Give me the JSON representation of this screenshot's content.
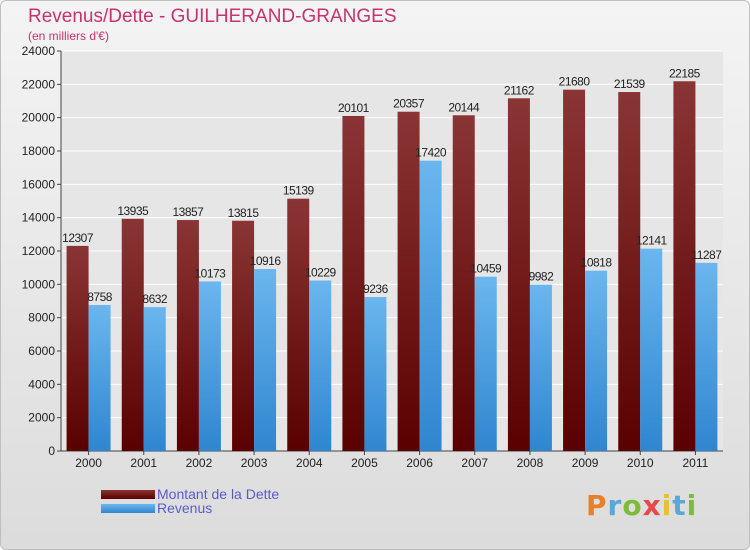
{
  "header": {
    "title": "Revenus/Dette - GUILHERAND-GRANGES",
    "subtitle": "(en milliers d'€)"
  },
  "colors": {
    "dette_top": "#8a3535",
    "dette_bottom": "#5a0000",
    "revenus_top": "#6bb6ee",
    "revenus_bottom": "#2f86d0",
    "grid": "#ffffff",
    "axis_text": "#222222"
  },
  "logo": {
    "text": "Proxiti",
    "letter_colors": [
      "#e8802a",
      "#5aa8d8",
      "#7dbb3a",
      "#e84848",
      "#e8c030",
      "#5aa8d8",
      "#7dbb3a"
    ]
  },
  "chart_data": {
    "type": "bar",
    "categories": [
      "2000",
      "2001",
      "2002",
      "2003",
      "2004",
      "2005",
      "2006",
      "2007",
      "2008",
      "2009",
      "2010",
      "2011"
    ],
    "series": [
      {
        "name": "Montant de la Dette",
        "values": [
          12307,
          13935,
          13857,
          13815,
          15139,
          20101,
          20357,
          20144,
          21162,
          21680,
          21539,
          22185
        ]
      },
      {
        "name": "Revenus",
        "values": [
          8758,
          8632,
          10173,
          10916,
          10229,
          9236,
          17420,
          10459,
          9982,
          10818,
          12141,
          11287
        ]
      }
    ],
    "ylim": [
      0,
      24000
    ],
    "yticks": [
      0,
      2000,
      4000,
      6000,
      8000,
      10000,
      12000,
      14000,
      16000,
      18000,
      20000,
      22000,
      24000
    ],
    "grid": true,
    "legend_position": "bottom-left"
  }
}
